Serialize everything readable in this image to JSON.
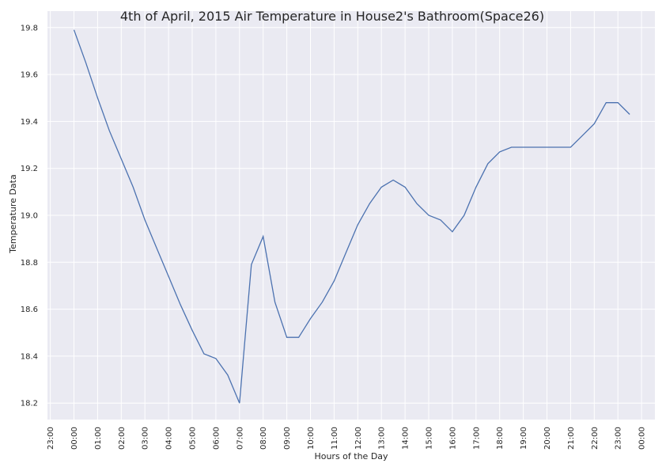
{
  "chart_data": {
    "type": "line",
    "title": "4th of April, 2015 Air Temperature in House2's Bathroom(Space26)",
    "xlabel": "Hours of the Day",
    "ylabel": "Temperature Data",
    "x_tick_labels": [
      "23:00",
      "00:00",
      "01:00",
      "02:00",
      "03:00",
      "04:00",
      "05:00",
      "06:00",
      "07:00",
      "08:00",
      "09:00",
      "10:00",
      "11:00",
      "12:00",
      "13:00",
      "14:00",
      "15:00",
      "16:00",
      "17:00",
      "18:00",
      "19:00",
      "20:00",
      "21:00",
      "22:00",
      "23:00",
      "00:00"
    ],
    "y_ticks": [
      18.2,
      18.4,
      18.6,
      18.8,
      19.0,
      19.2,
      19.4,
      19.6,
      19.8
    ],
    "ylim": [
      18.13,
      19.87
    ],
    "grid": true,
    "line_color": "#4c72b0",
    "series": [
      {
        "x": [
          0.0,
          0.5,
          1.0,
          1.5,
          2.0,
          2.5,
          3.0,
          3.5,
          4.0,
          4.5,
          5.0,
          5.5,
          6.0,
          6.5,
          7.0,
          7.5,
          8.0,
          8.5,
          9.0,
          9.5,
          10.0,
          10.5,
          11.0,
          11.5,
          12.0,
          12.5,
          13.0,
          13.5,
          14.0,
          14.5,
          15.0,
          15.5,
          16.0,
          16.5,
          17.0,
          17.5,
          18.0,
          18.5,
          19.0,
          19.5,
          20.0,
          20.5,
          21.0,
          21.5,
          22.0,
          22.5,
          23.0,
          23.5
        ],
        "values": [
          19.79,
          19.65,
          19.5,
          19.36,
          19.24,
          19.12,
          18.98,
          18.86,
          18.74,
          18.62,
          18.51,
          18.41,
          18.39,
          18.32,
          18.2,
          18.79,
          18.91,
          18.63,
          18.48,
          18.48,
          18.56,
          18.63,
          18.72,
          18.84,
          18.96,
          19.05,
          19.12,
          19.15,
          19.12,
          19.05,
          19.0,
          18.98,
          18.93,
          19.0,
          19.12,
          19.22,
          19.27,
          19.29,
          19.29,
          19.29,
          19.29,
          19.29,
          19.29,
          19.34,
          19.39,
          19.48,
          19.48,
          19.43
        ]
      }
    ]
  }
}
